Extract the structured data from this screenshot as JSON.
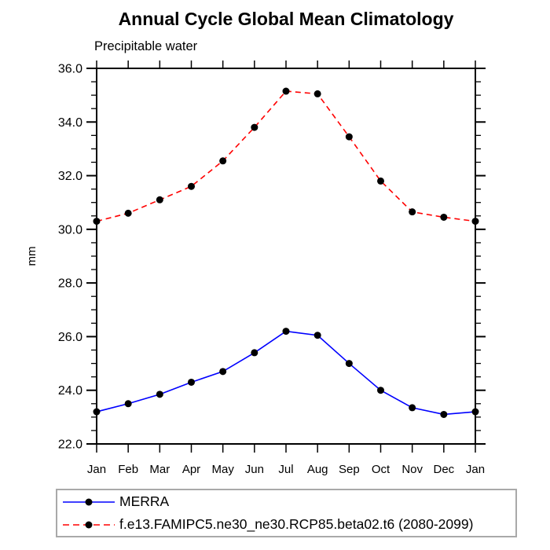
{
  "header": {
    "title": "Annual Cycle Global Mean Climatology",
    "subtitle": "Precipitable water"
  },
  "chart_data": {
    "type": "line",
    "title": "Annual Cycle Global Mean Climatology",
    "subtitle": "Precipitable water",
    "ylabel": "mm",
    "categories": [
      "Jan",
      "Feb",
      "Mar",
      "Apr",
      "May",
      "Jun",
      "Jul",
      "Aug",
      "Sep",
      "Oct",
      "Nov",
      "Dec",
      "Jan"
    ],
    "ylim": [
      22.0,
      36.0
    ],
    "y_major_step": 2.0,
    "y_minor_step": 0.5,
    "y_tick_labels": [
      "22.0",
      "24.0",
      "26.0",
      "28.0",
      "30.0",
      "32.0",
      "34.0",
      "36.0"
    ],
    "grid": false,
    "legend_position": "bottom",
    "marker_color": "#000000",
    "axis_color": "#000000",
    "series": [
      {
        "name": "MERRA",
        "color": "#0000ff",
        "line_style": "solid",
        "marker": "circle",
        "values": [
          23.2,
          23.5,
          23.85,
          24.3,
          24.7,
          25.4,
          26.2,
          26.05,
          25.0,
          24.0,
          23.35,
          23.1,
          23.2
        ]
      },
      {
        "name": "f.e13.FAMIPC5.ne30_ne30.RCP85.beta02.t6 (2080-2099)",
        "color": "#ff0000",
        "line_style": "dashed",
        "marker": "circle",
        "values": [
          30.3,
          30.6,
          31.1,
          31.6,
          32.55,
          33.8,
          35.15,
          35.05,
          33.45,
          31.8,
          30.65,
          30.45,
          30.3
        ]
      }
    ]
  }
}
